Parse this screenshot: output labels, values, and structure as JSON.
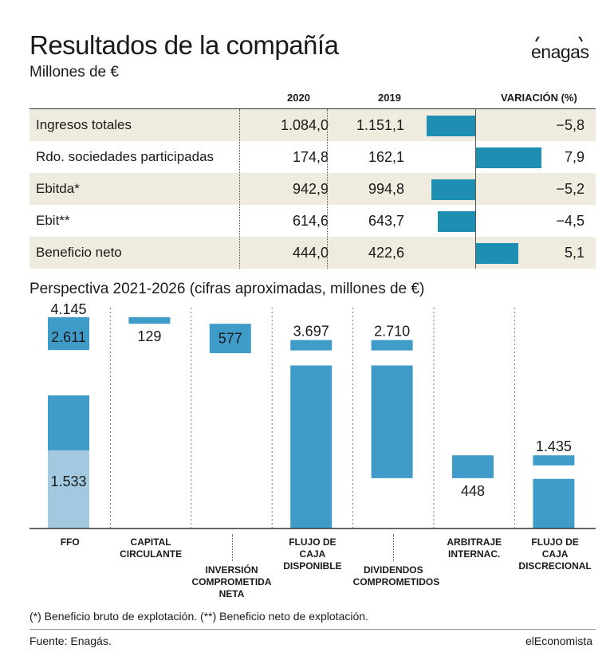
{
  "header": {
    "title": "Resultados de la compañía",
    "subtitle": "Millones de €",
    "logo": "enagas"
  },
  "table": {
    "columns": [
      "2020",
      "2019",
      "VARIACIÓN (%)"
    ],
    "rows": [
      {
        "label": "Ingresos totales",
        "v2020": "1.084,0",
        "v2019": "1.151,1",
        "variation": "−5,8",
        "variation_value": -5.8
      },
      {
        "label": "Rdo. sociedades participadas",
        "v2020": "174,8",
        "v2019": "162,1",
        "variation": "7,9",
        "variation_value": 7.9
      },
      {
        "label": "Ebitda*",
        "v2020": "942,9",
        "v2019": "994,8",
        "variation": "−5,2",
        "variation_value": -5.2
      },
      {
        "label": "Ebit**",
        "v2020": "614,6",
        "v2019": "643,7",
        "variation": "−4,5",
        "variation_value": -4.5
      },
      {
        "label": "Beneficio neto",
        "v2020": "444,0",
        "v2019": "422,6",
        "variation": "5,1",
        "variation_value": 5.1
      }
    ]
  },
  "chart_data": {
    "type": "bar",
    "title": "Perspectiva 2021-2026 (cifras aproximadas, millones de €)",
    "ylim": [
      0,
      4300
    ],
    "bars": [
      {
        "category": "FFO",
        "segments": [
          {
            "from": 0,
            "to": 1533,
            "color": "#a3c9e0",
            "label": "1.533"
          },
          {
            "from": 1533,
            "to": 2611,
            "color": "#3f9cc9",
            "label": ""
          },
          {
            "from": 2611,
            "to": 3500,
            "color": "#ffffff",
            "label": ""
          },
          {
            "from": 3500,
            "to": 4145,
            "color": "#3f9cc9",
            "label": "2.611"
          }
        ],
        "top_label": "4.145"
      },
      {
        "category": "CAPITAL CIRCULANTE",
        "from": 4145,
        "to": 4016,
        "label": "129"
      },
      {
        "category": "INVERSIÓN COMPROMETIDA NETA",
        "from": 4016,
        "to": 3439,
        "label": "577"
      },
      {
        "category": "FLUJO DE CAJA DISPONIBLE",
        "from": 0,
        "to": 3697,
        "label": "3.697"
      },
      {
        "category": "DIVIDENDOS COMPROMETIDOS",
        "from": 987,
        "to": 3697,
        "label": "2.710"
      },
      {
        "category": "ARBITRAJE INTERNAC.",
        "from": 987,
        "to": 1435,
        "label": "448"
      },
      {
        "category": "FLUJO DE CAJA DISCRECIONAL",
        "from": 0,
        "to": 1435,
        "label": "1.435"
      }
    ]
  },
  "footer": {
    "note": "(*) Beneficio bruto de explotación. (**) Beneficio neto de explotación.",
    "source": "Fuente: Enagás.",
    "brand": "elEconomista"
  },
  "colors": {
    "bar": "#3f9cc9",
    "bar_light": "#a3c9e0",
    "table_bar": "#1f8eb3",
    "row_shade": "#efecdf"
  }
}
